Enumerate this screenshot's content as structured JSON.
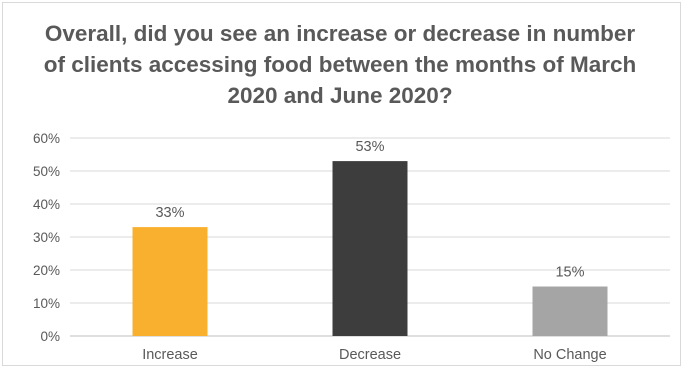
{
  "chart_data": {
    "type": "bar",
    "title": "Overall, did you see an increase or decrease in number of clients accessing food between the months of March 2020 and June 2020?",
    "categories": [
      "Increase",
      "Decrease",
      "No Change"
    ],
    "values": [
      33,
      53,
      15
    ],
    "data_labels": [
      "33%",
      "53%",
      "15%"
    ],
    "colors": [
      "#f9b02e",
      "#3d3d3d",
      "#a5a5a6"
    ],
    "ylim": [
      0,
      60
    ],
    "yticks": [
      0,
      10,
      20,
      30,
      40,
      50,
      60
    ],
    "ytick_labels": [
      "0%",
      "10%",
      "20%",
      "30%",
      "40%",
      "50%",
      "60%"
    ],
    "grid": true,
    "legend": "none",
    "xlabel": "",
    "ylabel": ""
  }
}
